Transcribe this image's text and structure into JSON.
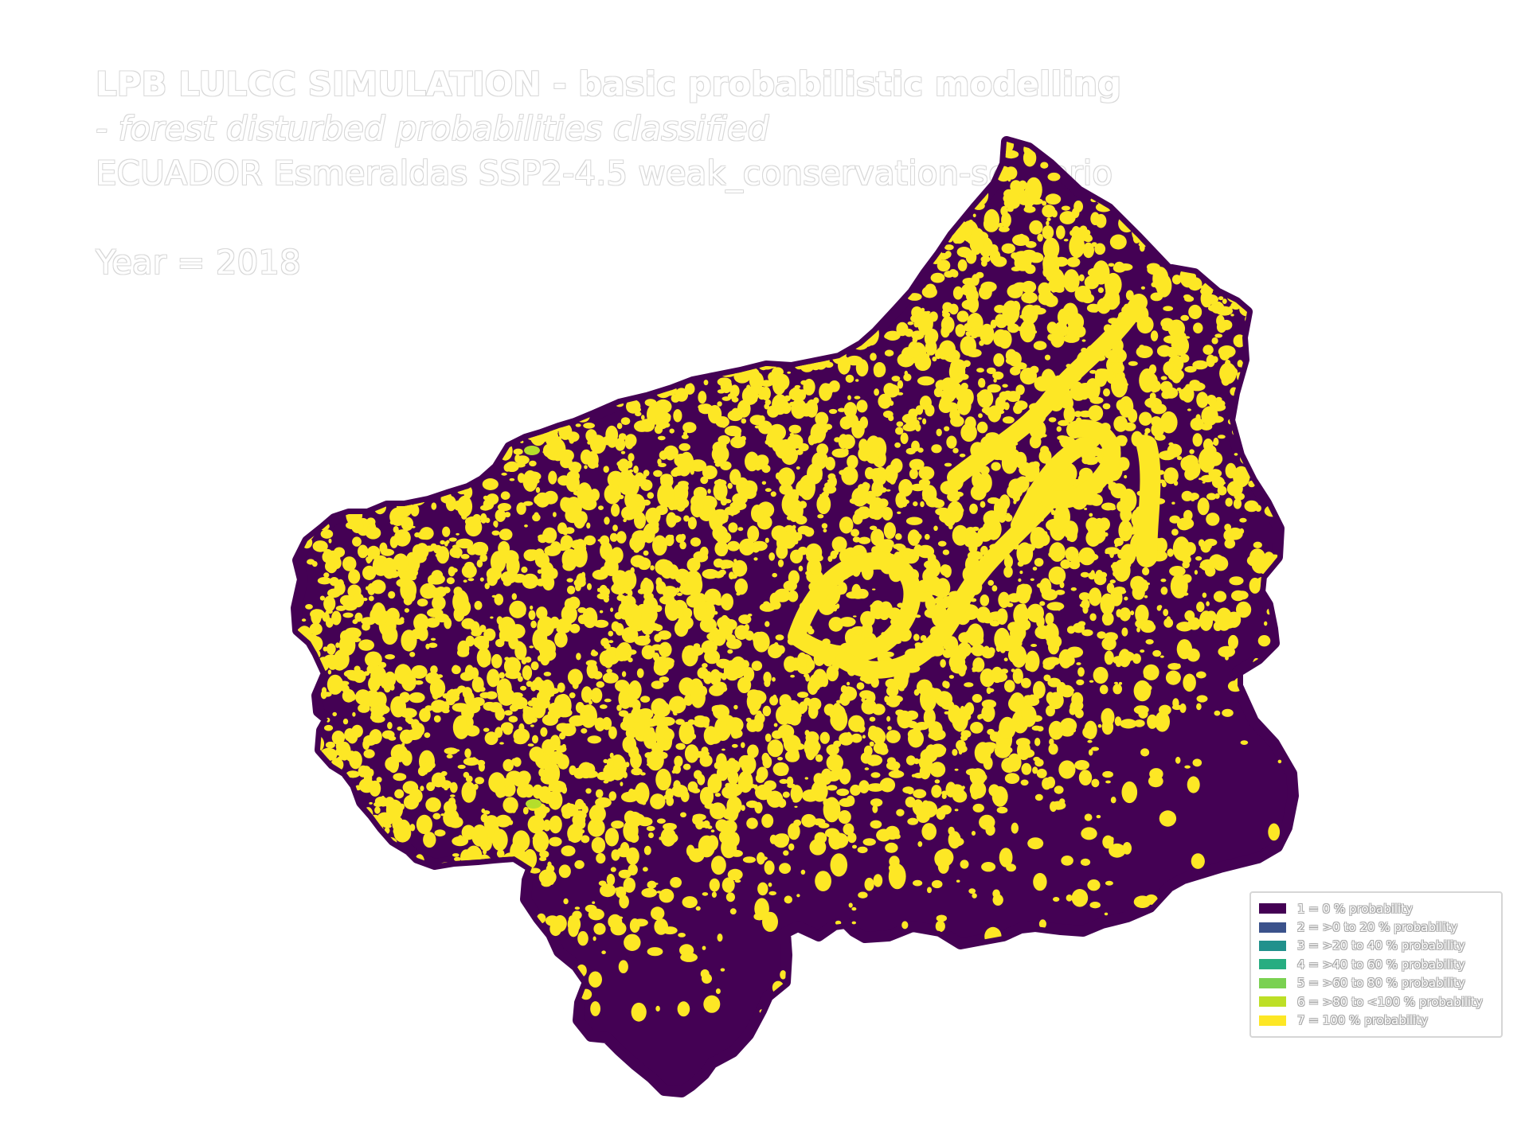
{
  "title": {
    "line1": "LPB LULCC SIMULATION - basic probabilistic modelling",
    "line2": " - forest disturbed probabilities classified",
    "line3": "ECUADOR Esmeraldas SSP2-4.5 weak_conservation-scenario",
    "year": "Year = 2018"
  },
  "map": {
    "background_class_color": "#440154",
    "dominant_overlay_color": "#fde725",
    "minor_overlay_color": "#b5de2b"
  },
  "legend": {
    "items": [
      {
        "label": "1 = 0 % probability",
        "color": "#440154"
      },
      {
        "label": "2 = >0 to 20 % probability",
        "color": "#3b528b"
      },
      {
        "label": "3 = >20 to 40 % probability",
        "color": "#21918c"
      },
      {
        "label": "4 = >40 to 60 % probability",
        "color": "#27ad81"
      },
      {
        "label": "5 = >60 to 80 % probability",
        "color": "#7ad151"
      },
      {
        "label": "6 = >80 to <100 % probability",
        "color": "#bddf26"
      },
      {
        "label": "7 = 100 % probability",
        "color": "#fde725"
      }
    ]
  }
}
